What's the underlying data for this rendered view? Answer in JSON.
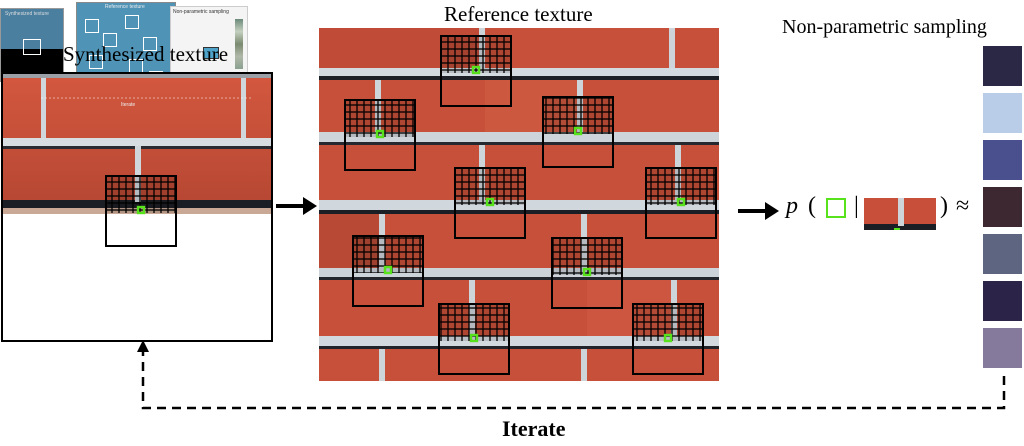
{
  "labels": {
    "synth_title": "Synthesized texture",
    "ref_title": "Reference texture",
    "np_title": "Non-parametric sampling",
    "iterate": "Iterate",
    "formula": {
      "p": "p",
      "open_paren": "(",
      "bar": "|",
      "close_paren": ")",
      "approx": "≈"
    }
  },
  "thumbnails": {
    "synth_thumb_label": "Synthesized texture",
    "ref_thumb_label": "Reference texture",
    "np_thumb_label": "Non-parametric sampling",
    "mid_label": "Iterate"
  },
  "colors": {
    "brick": "#c8503a",
    "brick_dark": "#a63e2b",
    "mortar": "#cfd6dc",
    "shadow": "#1a1c22",
    "patch_green": "#58e21b"
  },
  "palette": [
    "#2a2845",
    "#b9cde8",
    "#4a4f8e",
    "#3d2730",
    "#5d6580",
    "#2c2349",
    "#857a9c"
  ]
}
